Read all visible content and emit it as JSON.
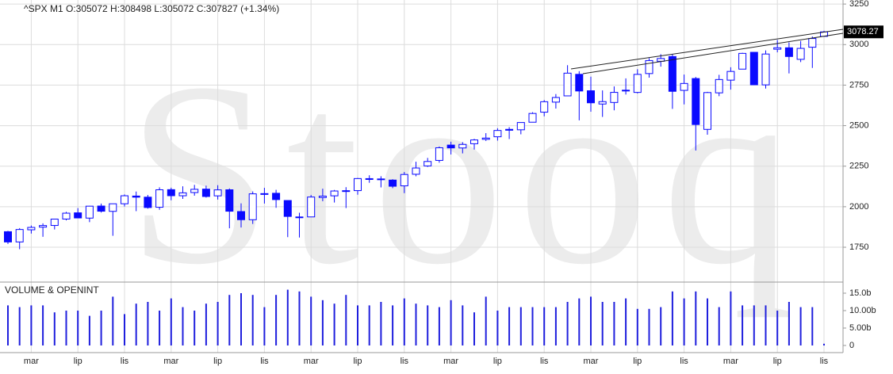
{
  "chart_data": [
    {
      "type": "candlestick",
      "title": "^SPX  M1  O:305072  H:308498  L:305072  C:307827  (+1.34%)",
      "watermark": "Stooq",
      "color": "#0a0aff",
      "categories": [
        null,
        null,
        "mar",
        null,
        null,
        null,
        "lip",
        null,
        null,
        null,
        "lis",
        null,
        null,
        null,
        "mar",
        null,
        null,
        null,
        "lip",
        null,
        null,
        null,
        "lis",
        null,
        null,
        null,
        "mar",
        null,
        null,
        null,
        "lip",
        null,
        null,
        null,
        "lis",
        null,
        null,
        null,
        "mar",
        null,
        null,
        null,
        "lip",
        null,
        null,
        null,
        "lis",
        null,
        null,
        null,
        "mar",
        null,
        null,
        null,
        "lip",
        null,
        null,
        null,
        "lis",
        null,
        null,
        null,
        "mar",
        null,
        null,
        null,
        "lip",
        null,
        null,
        null,
        "lis"
      ],
      "open": [
        1845.9,
        1782.7,
        1857.7,
        1873.96,
        1884.4,
        1923.9,
        1962.3,
        1929.8,
        2004.1,
        1971.4,
        2018.2,
        2065.8,
        2058.9,
        1996.7,
        2105.2,
        2067.6,
        2087.4,
        2108.6,
        2067.0,
        2104.5,
        1970.1,
        1919.7,
        2080.8,
        2082.9,
        2038.2,
        1936.9,
        1937.1,
        2056.6,
        2067.2,
        2093.9,
        2099.3,
        2173.2,
        2171.3,
        2164.3,
        2128.7,
        2200.2,
        2251.6,
        2285.6,
        2380.1,
        2362.3,
        2388.5,
        2415.6,
        2431.4,
        2477.1,
        2474.4,
        2521.2,
        2583.2,
        2645.1,
        2683.7,
        2816.5,
        2715.2,
        2633.5,
        2642.96,
        2718.7,
        2704.95,
        2821.2,
        2896.96,
        2926.3,
        2717.6,
        2790.5,
        2476.96,
        2702.3,
        2780.7,
        2848.6,
        2952.3,
        2751.5,
        2971.4,
        2980.3,
        2909.0,
        2983.7,
        3050.72
      ],
      "high": [
        1850.8,
        1867.9,
        1883.97,
        1897.3,
        1924.0,
        1968.2,
        1991.4,
        2005.0,
        2019.3,
        2018.2,
        2075.8,
        2093.6,
        2072.4,
        2119.6,
        2117.5,
        2125.9,
        2134.7,
        2129.9,
        2132.8,
        2112.7,
        2021.0,
        2094.3,
        2116.5,
        2104.3,
        2038.2,
        1962.96,
        2072.2,
        2111.1,
        2103.5,
        2120.6,
        2177.1,
        2193.8,
        2187.9,
        2169.6,
        2214.1,
        2277.5,
        2300.99,
        2371.5,
        2400.98,
        2398.2,
        2418.7,
        2453.8,
        2484.0,
        2490.9,
        2519.4,
        2582.98,
        2657.7,
        2694.97,
        2872.9,
        2835.96,
        2801.9,
        2717.5,
        2742.2,
        2791.5,
        2848.0,
        2916.5,
        2940.9,
        2939.9,
        2815.2,
        2800.2,
        2708.95,
        2813.5,
        2860.3,
        2949.5,
        2954.1,
        2964.2,
        3027.98,
        3013.6,
        3021.99,
        3050.1,
        3084.98
      ],
      "low": [
        1770.5,
        1737.9,
        1834.4,
        1814.4,
        1859.8,
        1915.98,
        1930.7,
        1904.8,
        1964.0,
        1820.7,
        2001.0,
        1972.6,
        1988.1,
        1980.9,
        2039.7,
        2048.4,
        2067.9,
        2056.3,
        2044.0,
        1867.0,
        1871.9,
        1893.7,
        2019.4,
        1993.3,
        1812.3,
        1810.1,
        1937.1,
        2033.8,
        2025.9,
        1991.7,
        2074.0,
        2147.6,
        2119.1,
        2114.7,
        2083.8,
        2187.4,
        2245.1,
        2271.7,
        2322.3,
        2328.95,
        2352.7,
        2405.7,
        2407.7,
        2417.4,
        2446.6,
        2520.4,
        2557.5,
        2605.5,
        2682.4,
        2532.7,
        2585.9,
        2553.8,
        2594.6,
        2691.99,
        2698.95,
        2796.3,
        2864.1,
        2603.5,
        2631.1,
        2346.6,
        2443.96,
        2681.8,
        2722.3,
        2848.6,
        2750.5,
        2728.8,
        2952.2,
        2822.1,
        2891.9,
        2855.9,
        3050.72
      ],
      "close": [
        1782.6,
        1859.5,
        1872.3,
        1883.95,
        1923.6,
        1960.2,
        1930.7,
        2003.4,
        1972.3,
        2018.1,
        2067.6,
        2058.9,
        1994.99,
        2104.5,
        2067.9,
        2085.5,
        2107.4,
        2063.1,
        2103.8,
        1972.2,
        1920.0,
        2079.4,
        2080.4,
        2043.9,
        1940.2,
        1932.2,
        2059.7,
        2065.3,
        2096.96,
        2098.9,
        2173.6,
        2170.95,
        2168.3,
        2126.2,
        2198.8,
        2238.8,
        2278.9,
        2363.6,
        2362.7,
        2384.2,
        2411.8,
        2423.4,
        2470.3,
        2471.7,
        2519.4,
        2575.3,
        2647.6,
        2673.6,
        2823.8,
        2713.8,
        2640.9,
        2648.1,
        2705.3,
        2718.4,
        2816.3,
        2901.5,
        2913.98,
        2711.7,
        2760.2,
        2506.9,
        2704.1,
        2784.5,
        2834.4,
        2945.8,
        2752.1,
        2941.8,
        2980.4,
        2926.5,
        2976.7,
        3037.6,
        3078.27
      ],
      "last_price": 3078.27,
      "ylim": [
        1540,
        3275
      ],
      "yticks": [
        1750,
        2000,
        2250,
        2500,
        2750,
        3000,
        3250
      ],
      "grid": true
    },
    {
      "type": "bar",
      "title": "VOLUME & OPENINT",
      "color": "#1f1fdd",
      "values": [
        11.5,
        11,
        11.5,
        11.5,
        9.5,
        10,
        10,
        8.5,
        10,
        14,
        9,
        12,
        12.5,
        10,
        13.5,
        11,
        10,
        12,
        12.5,
        14.5,
        15,
        14.5,
        11,
        14.5,
        16,
        15.5,
        14,
        13,
        12,
        14.5,
        11.5,
        11.5,
        12.5,
        11.5,
        13.5,
        12,
        11.5,
        11,
        13,
        11.5,
        9.5,
        14,
        10,
        11,
        11,
        11,
        11,
        11,
        12.5,
        13.5,
        14,
        12.5,
        12.5,
        13.5,
        10.5,
        10.5,
        11,
        15.5,
        13.5,
        15.5,
        13.5,
        11,
        15.5,
        11.5,
        11.5,
        11.5,
        10,
        12.5,
        11,
        11,
        0.5
      ],
      "ylim": [
        0,
        17.5
      ],
      "yticks": [
        0,
        {
          "value": 5,
          "label": "5.00b"
        },
        {
          "value": 10,
          "label": "10.00b"
        },
        {
          "value": 15,
          "label": "15.0b"
        }
      ]
    }
  ]
}
